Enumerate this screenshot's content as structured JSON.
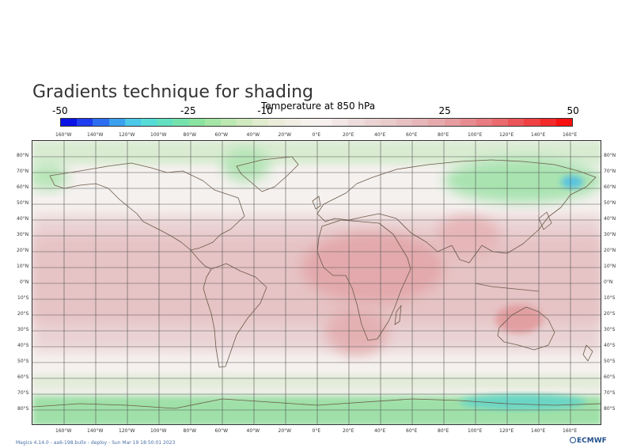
{
  "title": "Gradients technique for shading",
  "colorbar": {
    "title": "Temperature at 850 hPa",
    "tick_labels": [
      "-50",
      "-25",
      "-10",
      "25",
      "50"
    ],
    "tick_values": [
      -50,
      -25,
      -10,
      25,
      50
    ],
    "min": -50,
    "max": 50,
    "segments": 32,
    "colors": [
      "#0a14e6",
      "#1e3cf0",
      "#2d6ef0",
      "#3ba0ee",
      "#4cc8e8",
      "#55dcd8",
      "#62e0c0",
      "#75e2ae",
      "#8ae4a0",
      "#a4e6a6",
      "#bce8b2",
      "#cfeabf",
      "#e0eccd",
      "#ebedda",
      "#f1eee4",
      "#f5f1ec",
      "#f6f0ef",
      "#f2e6e6",
      "#eedcdd",
      "#ebd3d4",
      "#e9cbcc",
      "#e7c1c2",
      "#e6b6b8",
      "#e6aaad",
      "#e69ca0",
      "#e68c90",
      "#e87c80",
      "#ea6a6d",
      "#ec5558",
      "#ef4042",
      "#f3292a",
      "#f81010"
    ]
  },
  "axes": {
    "longitude_labels": [
      "160°W",
      "140°W",
      "120°W",
      "100°W",
      "80°W",
      "60°W",
      "40°W",
      "20°W",
      "0°E",
      "20°E",
      "40°E",
      "60°E",
      "80°E",
      "100°E",
      "120°E",
      "140°E",
      "160°E"
    ],
    "latitude_labels": [
      "80°N",
      "70°N",
      "60°N",
      "50°N",
      "40°N",
      "30°N",
      "20°N",
      "10°N",
      "0°N",
      "10°S",
      "20°S",
      "30°S",
      "40°S",
      "50°S",
      "60°S",
      "70°S",
      "80°S"
    ],
    "grid": true,
    "lon_range": [
      -180,
      180
    ],
    "lat_range": [
      -90,
      90
    ],
    "grid_step_deg": 20,
    "lat_step_deg": 10
  },
  "footer": "Magics 4.14.0 - aa6-198.bullx - deploy - Sun Mar 19 18:50:01 2023",
  "logo": "ECMWF",
  "colors": {
    "grid": "#555555",
    "coast": "#6b5a48",
    "frame": "#333333",
    "map_warm": "#e6b6b8",
    "map_neutral": "#f4efee",
    "map_cold": "#a4e6a6"
  }
}
